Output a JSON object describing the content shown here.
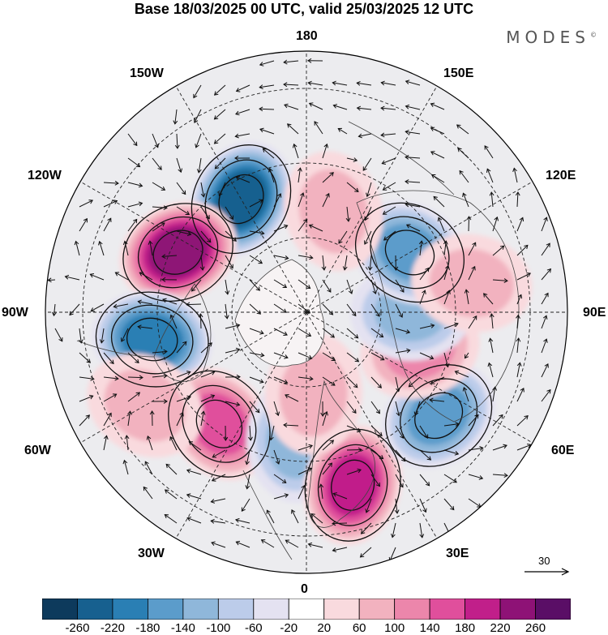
{
  "title": "Base 18/03/2025 00 UTC, valid 25/03/2025 12 UTC",
  "brand": "MODES",
  "brand_mark": "©",
  "meridian_labels": {
    "m180": "180",
    "m150w": "150W",
    "m150e": "150E",
    "m120w": "120W",
    "m120e": "120E",
    "m90w": "90W",
    "m90e": "90E",
    "m60w": "60W",
    "m60e": "60E",
    "m30w": "30W",
    "m30e": "30E",
    "m0": "0"
  },
  "wind_reference": {
    "label": "30",
    "icon": "arrow-right-icon"
  },
  "colorbar": {
    "levels": [
      "-260",
      "-220",
      "-180",
      "-140",
      "-100",
      "-60",
      "-20",
      "20",
      "60",
      "100",
      "140",
      "180",
      "220",
      "260"
    ],
    "colors": [
      "#0d3a5c",
      "#17608f",
      "#2a7fb4",
      "#5b9ccb",
      "#8fb7da",
      "#bcccea",
      "#e4e2f1",
      "#ffffff",
      "#f9dade",
      "#f2b2bf",
      "#ec86ab",
      "#e04f9c",
      "#c11f8a",
      "#8e1276",
      "#5a0e66"
    ]
  },
  "anomalies": [
    {
      "lon": -150,
      "lat": 55,
      "value": -230
    },
    {
      "lon": -115,
      "lat": 52,
      "value": 250
    },
    {
      "lon": -80,
      "lat": 48,
      "value": -210
    },
    {
      "lon": -38,
      "lat": 52,
      "value": 150
    },
    {
      "lon": -5,
      "lat": 55,
      "value": -120
    },
    {
      "lon": 15,
      "lat": 42,
      "value": 190
    },
    {
      "lon": 52,
      "lat": 45,
      "value": -150
    },
    {
      "lon": 72,
      "lat": 58,
      "value": 110
    },
    {
      "lon": 90,
      "lat": 62,
      "value": -130
    },
    {
      "lon": 120,
      "lat": 58,
      "value": -140
    },
    {
      "lon": 165,
      "lat": 62,
      "value": 80
    },
    {
      "lon": -60,
      "lat": 40,
      "value": 70
    },
    {
      "lon": 100,
      "lat": 45,
      "value": 60
    },
    {
      "lon": 5,
      "lat": 68,
      "value": 60
    }
  ]
}
